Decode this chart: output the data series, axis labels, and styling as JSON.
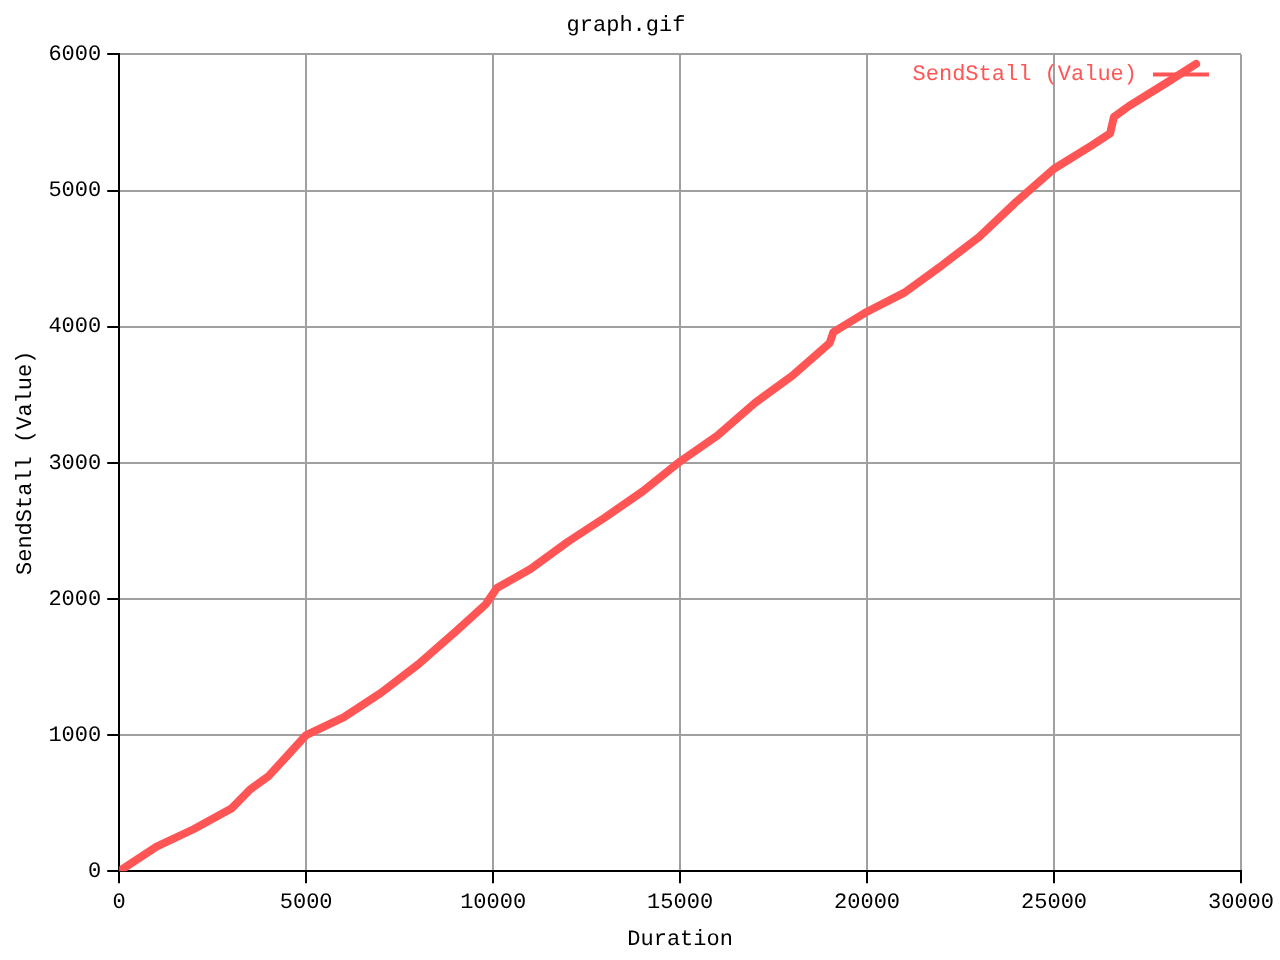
{
  "chart_data": {
    "type": "line",
    "title": "graph.gif",
    "xlabel": "Duration",
    "ylabel": "SendStall (Value)",
    "x": [
      0,
      1000,
      2000,
      3000,
      3500,
      4000,
      4500,
      5000,
      6000,
      7000,
      8000,
      9000,
      9800,
      10100,
      11000,
      12000,
      13000,
      14000,
      15000,
      16000,
      17000,
      18000,
      19000,
      19100,
      20000,
      21000,
      22000,
      23000,
      24000,
      25000,
      26000,
      26500,
      26600,
      27000,
      28000,
      28800
    ],
    "series": [
      {
        "name": "SendStall (Value)",
        "color": "#ff5555",
        "values": [
          0,
          180,
          310,
          460,
          600,
          700,
          850,
          1000,
          1130,
          1310,
          1520,
          1760,
          1960,
          2080,
          2220,
          2420,
          2600,
          2790,
          3010,
          3200,
          3440,
          3640,
          3880,
          3960,
          4110,
          4250,
          4450,
          4660,
          4920,
          5160,
          5330,
          5420,
          5540,
          5620,
          5790,
          5930
        ]
      }
    ],
    "xlim": [
      0,
      30000
    ],
    "ylim": [
      0,
      6000
    ],
    "xticks": [
      0,
      5000,
      10000,
      15000,
      20000,
      25000,
      30000
    ],
    "yticks": [
      0,
      1000,
      2000,
      3000,
      4000,
      5000,
      6000
    ],
    "grid": true,
    "legend": "top right",
    "marker": "none",
    "line_style": "solid"
  }
}
